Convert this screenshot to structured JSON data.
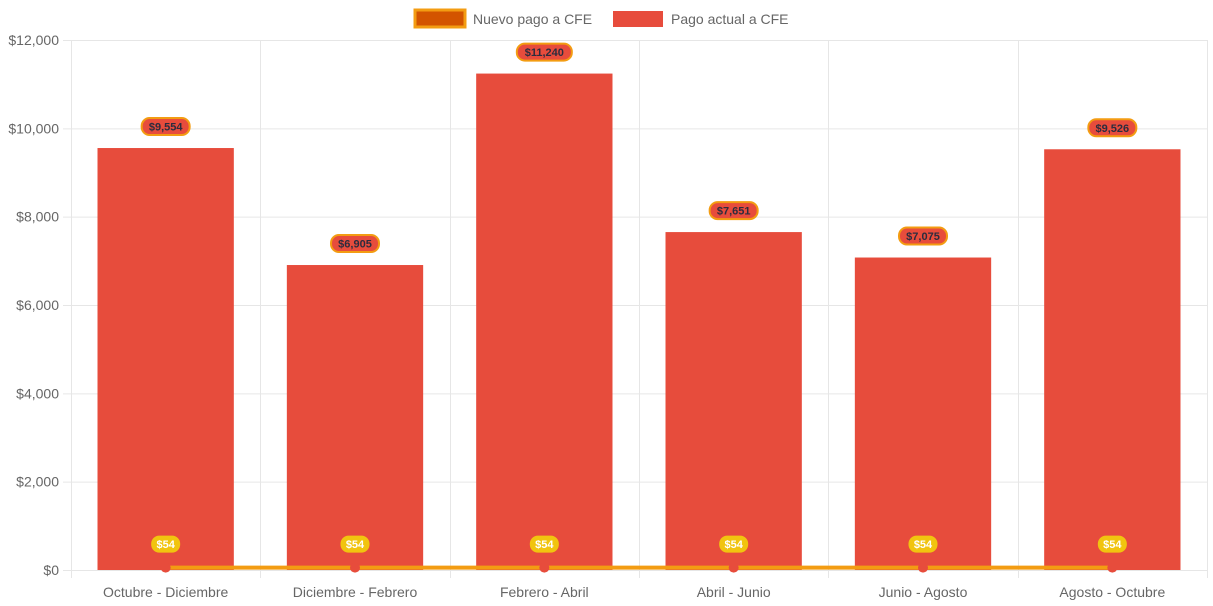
{
  "chart_data": {
    "type": "bar",
    "categories": [
      "Octubre - Diciembre",
      "Diciembre - Febrero",
      "Febrero - Abril",
      "Abril - Junio",
      "Junio - Agosto",
      "Agosto - Octubre"
    ],
    "series": [
      {
        "name": "Nuevo pago a CFE",
        "type": "line",
        "values": [
          54,
          54,
          54,
          54,
          54,
          54
        ],
        "labels": [
          "$54",
          "$54",
          "$54",
          "$54",
          "$54",
          "$54"
        ],
        "color": "#f39c12",
        "point_color": "#e74c3c",
        "legend_fill": "#d35400",
        "label_bg": "#f1c40f",
        "label_text_color": "#ffffff"
      },
      {
        "name": "Pago actual a CFE",
        "type": "bar",
        "values": [
          9554,
          6905,
          11240,
          7651,
          7075,
          9526
        ],
        "labels": [
          "$9,554",
          "$6,905",
          "$11,240",
          "$7,651",
          "$7,075",
          "$9,526"
        ],
        "color": "#e74c3c",
        "label_bg": "#e74c3c",
        "label_border": "#f39c12",
        "label_text_color": "#2c2c3e"
      }
    ],
    "ylim": [
      0,
      12000
    ],
    "yticks": [
      "$0",
      "$2,000",
      "$4,000",
      "$6,000",
      "$8,000",
      "$10,000",
      "$12,000"
    ],
    "ytick_values": [
      0,
      2000,
      4000,
      6000,
      8000,
      10000,
      12000
    ],
    "legend_position": "top-center",
    "grid": true,
    "grid_color": "#e6e6e6",
    "text_color": "#666666"
  }
}
